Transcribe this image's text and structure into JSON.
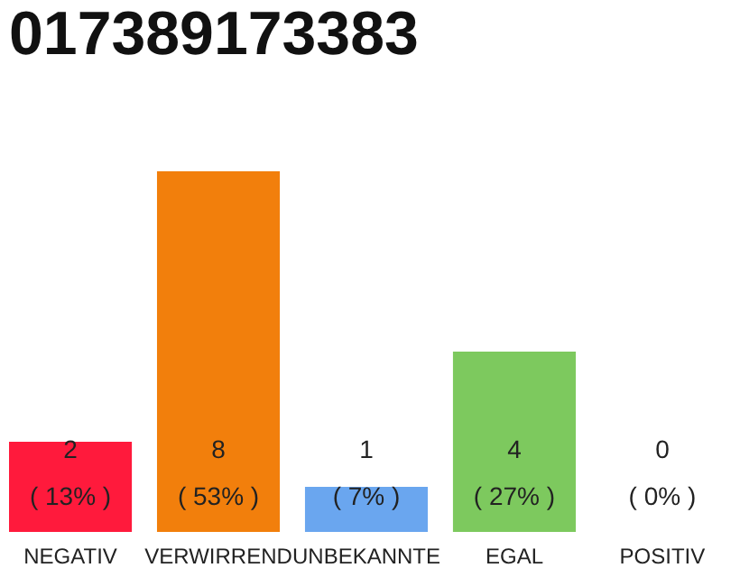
{
  "chart_data": {
    "type": "bar",
    "title": "017389173383",
    "categories": [
      "NEGATIV",
      "VERWIRREND",
      "UNBEKANNTE",
      "EGAL",
      "POSITIV"
    ],
    "values": [
      2,
      8,
      1,
      4,
      0
    ],
    "colors": [
      "#ff1a3c",
      "#f27f0c",
      "#6aa6ef",
      "#7dc95e",
      "#cccccc"
    ],
    "value_labels": [
      "2\n( 13% )",
      "8\n( 53% )",
      "1\n( 7% )",
      "4\n( 27% )",
      "0\n( 0% )"
    ],
    "grid": false
  }
}
